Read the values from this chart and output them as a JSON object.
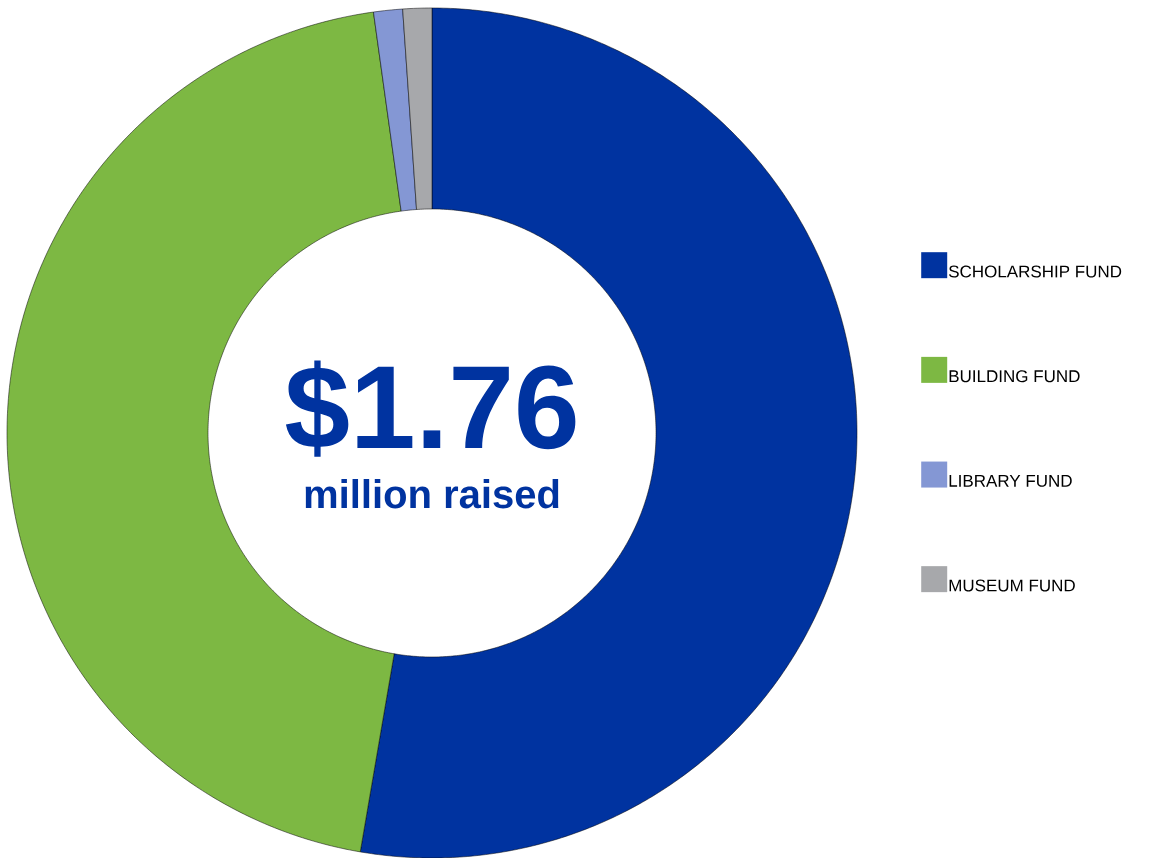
{
  "chart_data": {
    "type": "donut",
    "categories": [
      "SCHOLARSHIP FUND",
      "BUILDING FUND",
      "LIBRARY FUND",
      "MUSEUM FUND"
    ],
    "values": [
      52.7,
      45.1,
      1.1,
      1.1
    ],
    "colors": [
      "#0033a0",
      "#7db843",
      "#8497d4",
      "#a7a8ab"
    ],
    "legend": "right",
    "annotations": [
      "$1.76",
      "million raised"
    ]
  }
}
